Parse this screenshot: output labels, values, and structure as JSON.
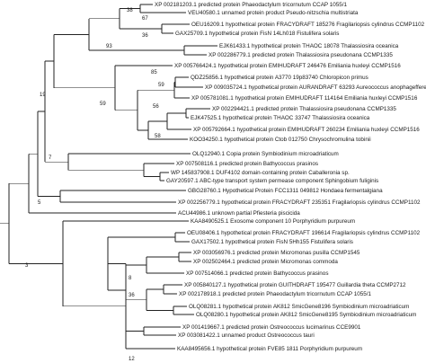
{
  "diagram": {
    "type": "phylogenetic-tree",
    "taxa": [
      "XP 002181203.1 predicted protein Phaeodactylum tricornutum CCAP 1055/1",
      "VEU40580.1 unnamed protein product Pseudo-nitzschia multistriata",
      "OEU16209.1 hypothetical protein FRACYDRAFT 185276 Fragilariopsis cylindrus CCMP1102",
      "GAX25709.1 hypothetical protein FisN 14Lh018 Fistulifera solaris",
      "EJK61433.1 hypothetical protein THAOC 18078 Thalassiosira oceanica",
      "XP 002286779.1 predicted protein Thalassiosira pseudonana CCMP1335",
      "XP 005766424.1 hypothetical protein EMIHUDRAFT 246476 Emiliania huxleyi CCMP1516",
      "QDZ25856.1 hypothetical protein A3770 19p83740 Chloropicon primus",
      "XP 009035724.1 hypothetical protein AURANDRAFT 63293 Aureococcus anophagefferens",
      "XP 005781081.1 hypothetical protein EMIHUDRAFT 114164 Emiliania huxleyi CCMP1516",
      "XP 002294421.1 predicted protein Thalassiosira pseudonana CCMP1335",
      "EJK47525.1 hypothetical protein THAOC 33747 Thalassiosira oceanica",
      "XP 005792664.1 hypothetical protein EMIHUDRAFT 260234 Emiliania huxleyi CCMP1516",
      "KOO34250.1 hypothetical protein Ctob 012750 Chrysochromulina tobinii",
      "OLQ12940.1 Copia protein Symbiodinium microadriaticum",
      "XP 007508116.1 predicted protein Bathycoccus prasinos",
      "WP 145837908.1 DUF4102 domain-containing protein Caballeronia sp.",
      "GAY20597.1 ABC-type transport system permease component Sphingobium fuliginis",
      "GBG28760.1 Hypothetical Protein FCC1311 049812 Hondaea fermentalgiana",
      "XP 002256779.1 hypothetical protein FRACYDRAFT 235351 Fragilariopsis cylindrus CCMP1102",
      "ACU44986.1 unknown partial Pfiesteria piscicida",
      "KAA8490525.1 Exosome component 10 Porphyridium purpureum",
      "OEU08406.1 hypothetical protein FRACYDRAFT 196614 Fragilariopsis cylindrus CCMP1102",
      "GAX17502.1 hypothetical protein FisN 5Hh155 Fistulifera solaris",
      "XP 003056976.1 predicted protein Micromonas pusilla CCMP1545",
      "XP 002502464.1 predicted protein Micromonas commoda",
      "XP 007514066.1 predicted protein Bathycoccus prasinos",
      "XP 005840127.1 hypothetical protein GUITHDRAFT 195477 Guillardia theta CCMP2712",
      "XP 002178918.1 predicted protein Phaeodactylum tricornutum CCAP 1055/1",
      "OLQ08281.1 hypothetical protein AK812 SmicGene8196 Symbiodinium microadriaticum",
      "OLQ08280.1 hypothetical protein AK812 SmicGene8195 Symbiodinium microadriaticum",
      "XP 001419667.1 predicted protein Ostreococcus lucimarinus CCE9901",
      "XP 003081422.1 unnamed product Ostreococcus tauri",
      "KAA8495656.1 hypothetical protein FVE85 1811 Porphyridium purpureum"
    ],
    "support_values": [
      "38",
      "67",
      "36",
      "93",
      "59",
      "85",
      "59",
      "56",
      "19",
      "58",
      "7",
      "5",
      "3",
      "8",
      "36",
      "12"
    ]
  }
}
